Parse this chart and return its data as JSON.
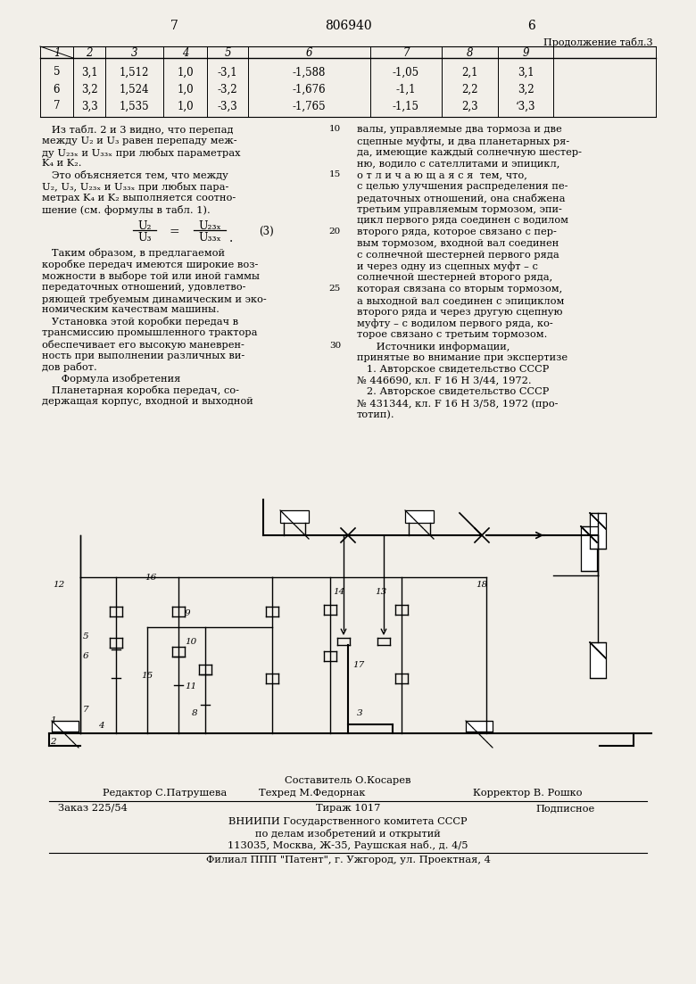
{
  "page_num_left": "7",
  "patent_num": "806940",
  "page_num_right": "6",
  "table_title": "Продолжение табл.3",
  "table_headers": [
    "1",
    "2",
    "3",
    "4",
    "5",
    "6",
    "7",
    "8",
    "9"
  ],
  "table_rows": [
    [
      "5",
      "3,1",
      "1,512",
      "1,0",
      "-3,1",
      "-1,588",
      "-1,05",
      "2,1",
      "3,1"
    ],
    [
      "6",
      "3,2",
      "1,524",
      "1,0",
      "-3,2",
      "-1,676",
      "-1,1",
      "2,2",
      "3,2"
    ],
    [
      "7",
      "3,3",
      "1,535",
      "1,0",
      "-3,3",
      "-1,765",
      "-1,15",
      "2,3",
      "‘3,3"
    ]
  ],
  "bg_color": "#f2efe9",
  "footer_composer": "Составитель О.Косарев",
  "footer_editor": "Редактор С.Патрушева",
  "footer_techred": "Техред М.Федорнак",
  "footer_corrector": "Корректор В. Рошко",
  "footer_order": "Заказ 225/54",
  "footer_print": "Тираж 1017",
  "footer_subscription": "Подписное",
  "footer_org1": "ВНИИПИ Государственного комитета СССР",
  "footer_org2": "по делам изобретений и открытий",
  "footer_addr": "113035, Москва, Ж-35, Раушская наб., д. 4/5",
  "footer_branch": "Филиал ППП \"Патент\", г. Ужгород, ул. Проектная, 4"
}
